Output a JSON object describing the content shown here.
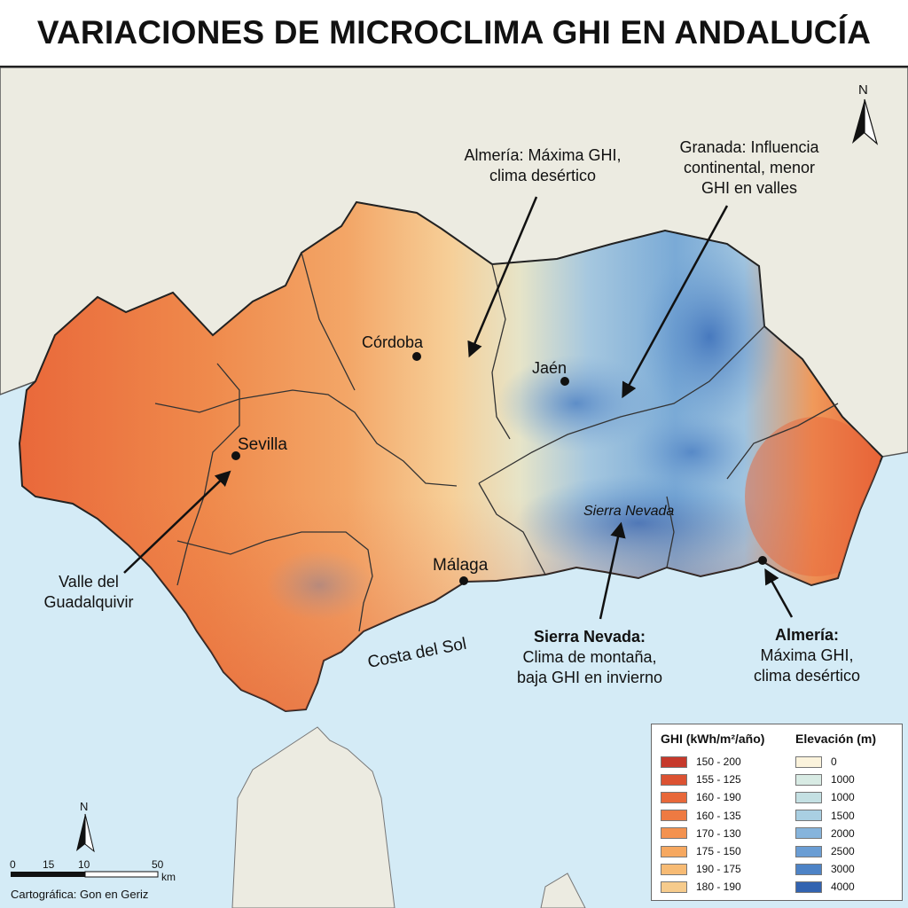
{
  "title": "VARIACIONES DE MICROCLIMA GHI EN ANDALUCÍA",
  "north_label": "N",
  "cities": [
    {
      "name": "Córdoba"
    },
    {
      "name": "Sevilla"
    },
    {
      "name": "Jaén"
    },
    {
      "name": "Málaga"
    }
  ],
  "region_labels": {
    "sierra_nevada": "Sierra Nevada",
    "costa_del_sol": "Costa del Sol"
  },
  "annotations": {
    "almeria_top": {
      "line1": "Almería: Máxima GHI,",
      "line2": "clima desértico"
    },
    "granada": {
      "line1": "Granada: Influencia",
      "line2": "continental, menor",
      "line3": "GHI en valles"
    },
    "valle": {
      "line1": "Valle del",
      "line2": "Guadalquivir"
    },
    "sierra": {
      "heading": "Sierra Nevada:",
      "line1": "Clima de montaña,",
      "line2": "baja GHI en invierno"
    },
    "almeria": {
      "heading": "Almería:",
      "line1": "Máxima GHI,",
      "line2": "clima desértico"
    }
  },
  "legend": {
    "ghi": {
      "title": "GHI (kWh/m²/año)",
      "items": [
        {
          "label": "150 - 200",
          "color": "#c6392b"
        },
        {
          "label": "155 - 125",
          "color": "#dc5232"
        },
        {
          "label": "160 - 190",
          "color": "#e8683a"
        },
        {
          "label": "160 - 135",
          "color": "#ee7a42"
        },
        {
          "label": "170 - 130",
          "color": "#f3924f"
        },
        {
          "label": "175 - 150",
          "color": "#f6a860"
        },
        {
          "label": "190 - 175",
          "color": "#f7bb74"
        },
        {
          "label": "180 - 190",
          "color": "#f6cb8c"
        }
      ]
    },
    "elevation": {
      "title": "Elevación (m)",
      "items": [
        {
          "label": "0",
          "color": "#fbf3dc"
        },
        {
          "label": "1000",
          "color": "#d8ebe4"
        },
        {
          "label": "1000",
          "color": "#c4e0e3"
        },
        {
          "label": "1500",
          "color": "#a9cfe2"
        },
        {
          "label": "2000",
          "color": "#86b4dc"
        },
        {
          "label": "2500",
          "color": "#6a9dd4"
        },
        {
          "label": "3000",
          "color": "#4d83c6"
        },
        {
          "label": "4000",
          "color": "#3263b0"
        }
      ]
    }
  },
  "scale": {
    "ticks": [
      "0",
      "15",
      "10",
      "50"
    ],
    "unit": "km",
    "north": "N"
  },
  "credit": "Cartográfica: Gon en Geriz",
  "colors": {
    "sea": "#d4ebf6",
    "land": "#ece9de",
    "high_ghi": "#e8653a",
    "low_ghi": "#6d9fd2"
  }
}
